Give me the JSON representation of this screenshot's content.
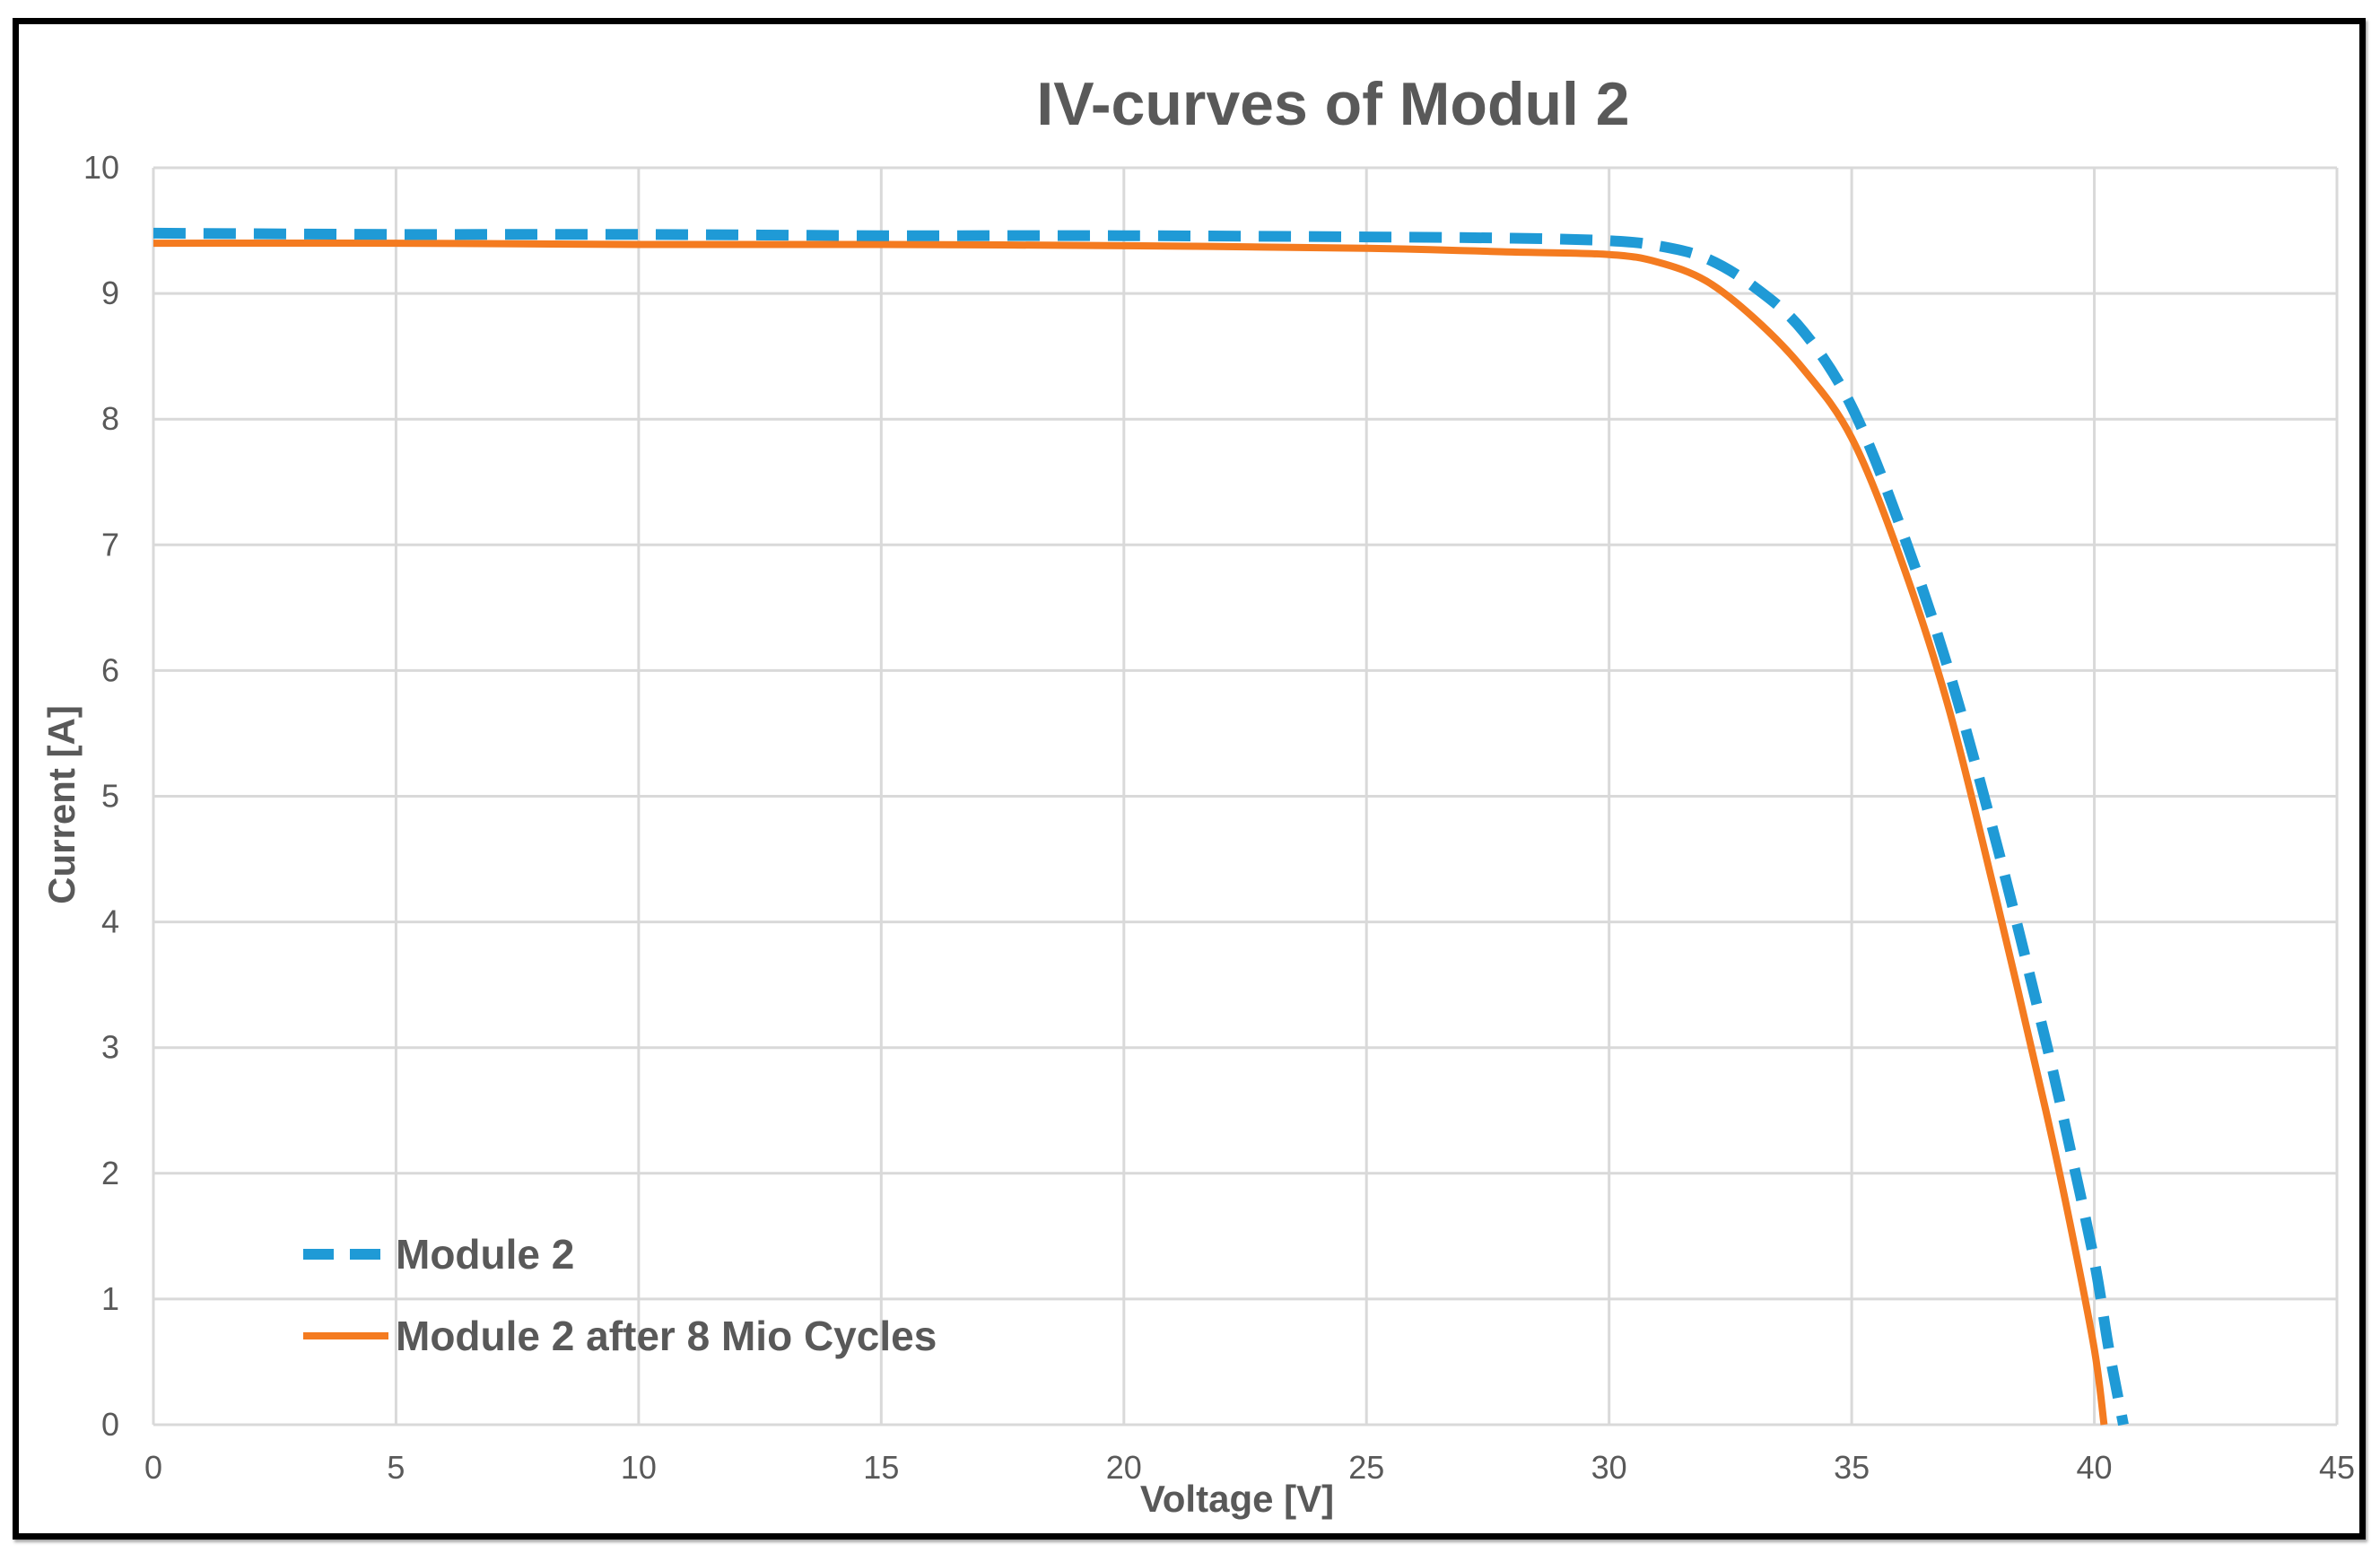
{
  "chart_data": {
    "type": "line",
    "title": "IV-curves of Modul 2",
    "xlabel": "Voltage [V]",
    "ylabel": "Current [A]",
    "xlim": [
      0,
      45
    ],
    "ylim": [
      0,
      10
    ],
    "x_ticks": [
      "0",
      "5",
      "10",
      "15",
      "20",
      "25",
      "30",
      "35",
      "40",
      "45"
    ],
    "y_ticks": [
      "0",
      "1",
      "2",
      "3",
      "4",
      "5",
      "6",
      "7",
      "8",
      "9",
      "10"
    ],
    "grid": true,
    "legend_position": "bottom-left",
    "series": [
      {
        "name": "Module 2",
        "color": "#1f9ad6",
        "style": "dashed",
        "points": [
          [
            0,
            9.48
          ],
          [
            5,
            9.47
          ],
          [
            10,
            9.47
          ],
          [
            15,
            9.46
          ],
          [
            20,
            9.46
          ],
          [
            25,
            9.45
          ],
          [
            28,
            9.44
          ],
          [
            30,
            9.42
          ],
          [
            31,
            9.38
          ],
          [
            32,
            9.28
          ],
          [
            33,
            9.05
          ],
          [
            34,
            8.7
          ],
          [
            35,
            8.1
          ],
          [
            36,
            7.15
          ],
          [
            37,
            6.0
          ],
          [
            38,
            4.6
          ],
          [
            39,
            3.05
          ],
          [
            39.5,
            2.2
          ],
          [
            40,
            1.3
          ],
          [
            40.3,
            0.6
          ],
          [
            40.6,
            0.0
          ]
        ]
      },
      {
        "name": "Module 2 after 8 Mio Cycles",
        "color": "#f47b20",
        "style": "solid",
        "points": [
          [
            0,
            9.4
          ],
          [
            5,
            9.4
          ],
          [
            10,
            9.39
          ],
          [
            15,
            9.39
          ],
          [
            20,
            9.38
          ],
          [
            25,
            9.36
          ],
          [
            28,
            9.33
          ],
          [
            30,
            9.31
          ],
          [
            31,
            9.25
          ],
          [
            32,
            9.1
          ],
          [
            33,
            8.8
          ],
          [
            34,
            8.4
          ],
          [
            35,
            7.85
          ],
          [
            36,
            6.9
          ],
          [
            37,
            5.7
          ],
          [
            38,
            4.15
          ],
          [
            39,
            2.5
          ],
          [
            39.5,
            1.6
          ],
          [
            40,
            0.6
          ],
          [
            40.2,
            0.0
          ]
        ]
      }
    ]
  }
}
